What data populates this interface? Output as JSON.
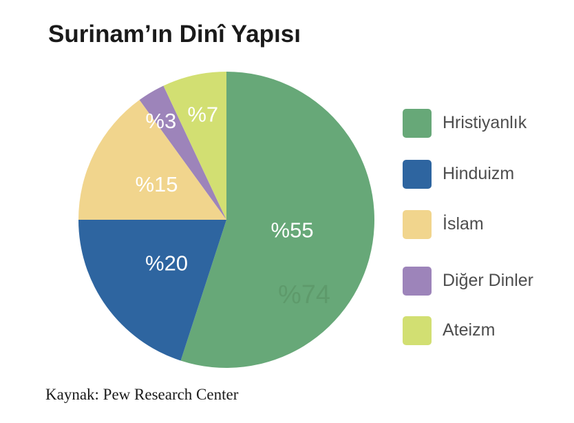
{
  "chart_data": {
    "type": "pie",
    "title": "Surinam’ın Dinî Yapısı",
    "categories": [
      "Hristiyanlık",
      "Hinduizm",
      "İslam",
      "Diğer Dinler",
      "Ateizm"
    ],
    "values": [
      55,
      20,
      15,
      3,
      7
    ],
    "data_labels": [
      "%55",
      "%20",
      "%15",
      "%3",
      "%7"
    ],
    "colors": [
      "#67a878",
      "#2e65a0",
      "#f1d58d",
      "#9d84ba",
      "#d2df72"
    ],
    "legend_position": "right",
    "annotations": [
      {
        "text": "%74",
        "color": "#5e9a6b"
      }
    ]
  },
  "source": "Kaynak: Pew Research Center"
}
